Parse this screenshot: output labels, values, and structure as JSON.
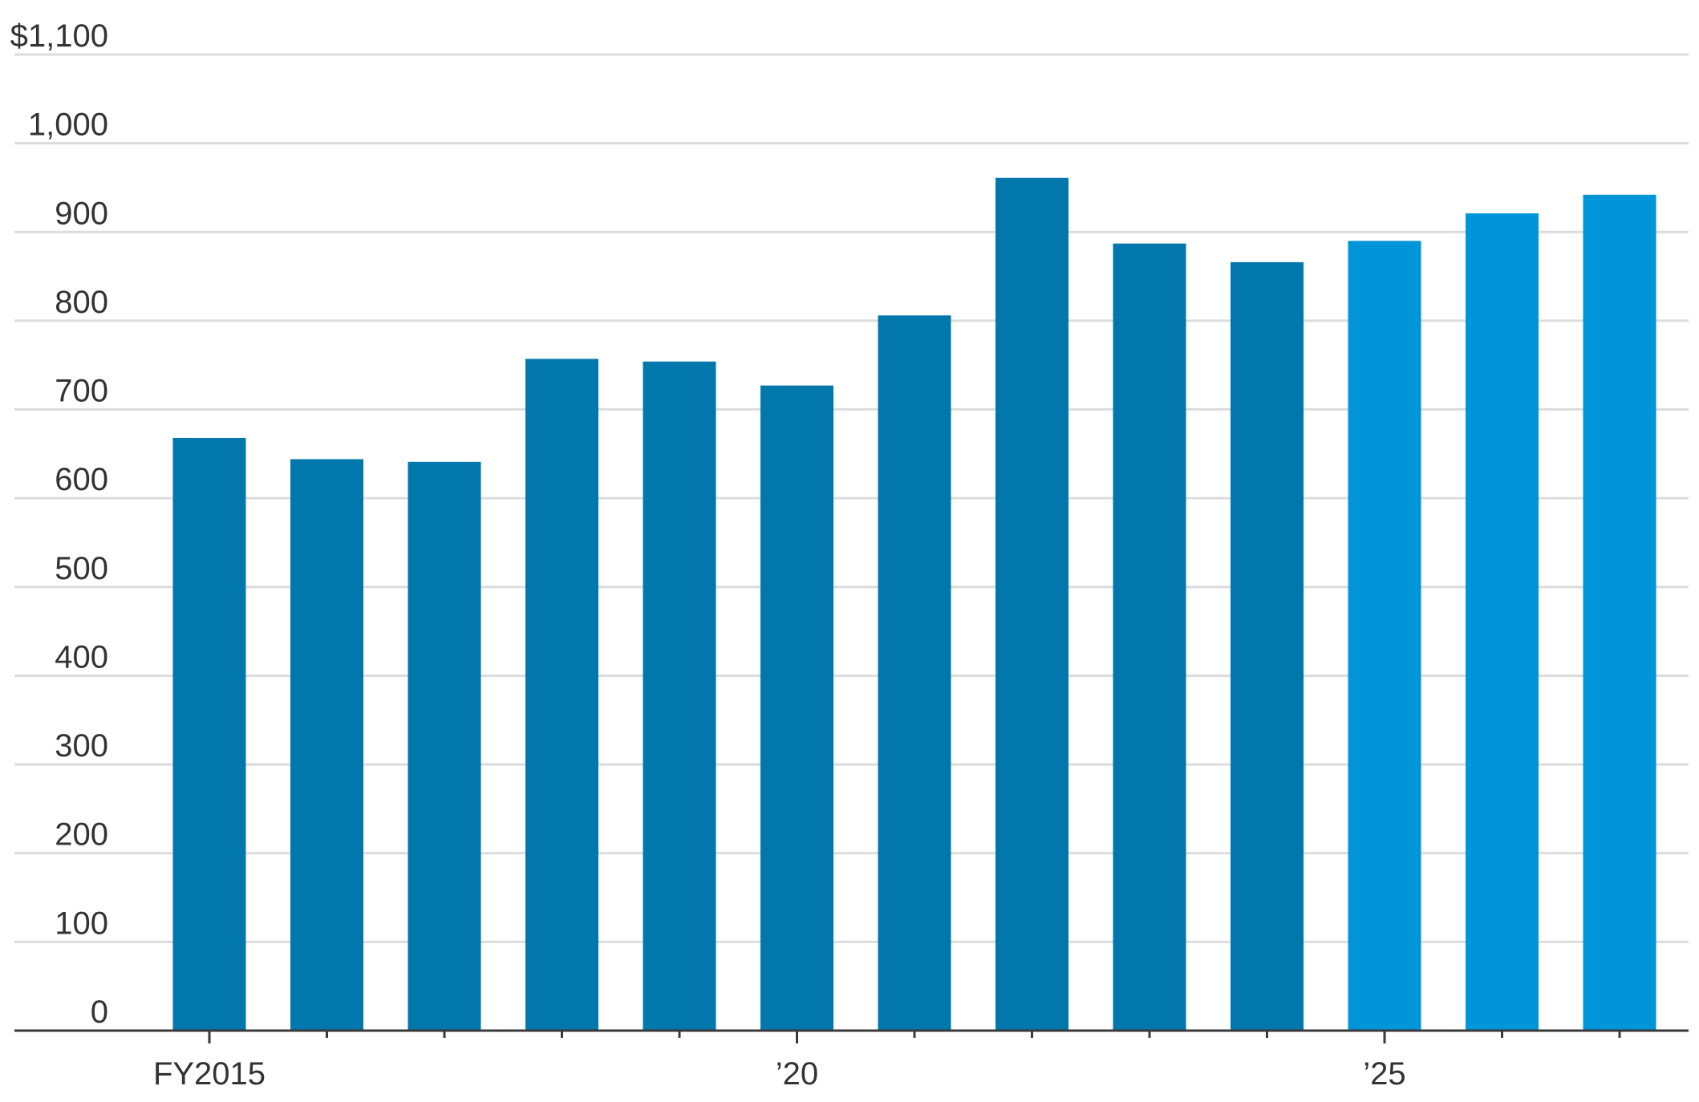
{
  "chart_data": {
    "type": "bar",
    "title": "",
    "xlabel": "",
    "ylabel": "",
    "ylim": [
      0,
      1100
    ],
    "yticks": [
      0,
      100,
      200,
      300,
      400,
      500,
      600,
      700,
      800,
      900,
      1000,
      1100
    ],
    "ytick_labels": [
      "0",
      "100",
      "200",
      "300",
      "400",
      "500",
      "600",
      "700",
      "800",
      "900",
      "1,000",
      "$1,100"
    ],
    "categories": [
      "2015",
      "2016",
      "2017",
      "2018",
      "2019",
      "2020",
      "2021",
      "2022",
      "2023",
      "2024",
      "2025",
      "2026",
      "2027"
    ],
    "values": [
      668,
      644,
      641,
      757,
      754,
      727,
      806,
      961,
      887,
      866,
      890,
      921,
      942
    ],
    "xtick_labels": [
      "FY2015",
      "",
      "",
      "",
      "",
      "’20",
      "",
      "",
      "",
      "",
      "’25",
      "",
      ""
    ],
    "grid": true,
    "legend": "none",
    "colors": {
      "actual": "#0277ac",
      "projected": "#0095d9",
      "grid": "#dcdcdc",
      "axis": "#3a3a3a",
      "text": "#333333"
    },
    "bar_color_by_category": [
      "actual",
      "actual",
      "actual",
      "actual",
      "actual",
      "actual",
      "actual",
      "actual",
      "actual",
      "actual",
      "projected",
      "projected",
      "projected"
    ]
  }
}
